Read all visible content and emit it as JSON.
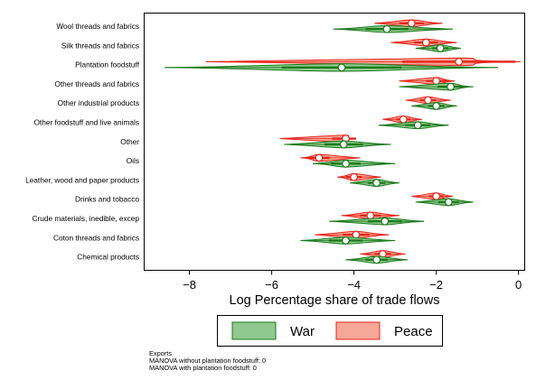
{
  "chart_data": {
    "type": "violin",
    "xlabel": "Log Percentage share of trade flows",
    "xlim": [
      -9.1,
      0.15
    ],
    "xticks": [
      -8,
      -6,
      -4,
      -2,
      0
    ],
    "categories": [
      "Wool threads and fabrics",
      "Silk threads and fabrics",
      "Plantation foodstuff",
      "Other threads and fabrics",
      "Other industrial products",
      "Other foodstuff and live animals",
      "Other",
      "Oils",
      "Leather, wood and paper products",
      "Drinks and tobacco",
      "Crude materials, inedible, excep",
      "Coton threads and fabrics",
      "Chemical products"
    ],
    "series": [
      {
        "name": "War",
        "color": "#1a7a1a",
        "fill": "#8fc98f",
        "medians": [
          -3.2,
          -1.9,
          -4.3,
          -1.65,
          -2.0,
          -2.45,
          -4.25,
          -4.2,
          -3.45,
          -1.7,
          -3.25,
          -4.2,
          -3.45
        ],
        "ranges": [
          [
            -4.5,
            -1.6
          ],
          [
            -2.5,
            -1.4
          ],
          [
            -8.6,
            -0.5
          ],
          [
            -2.9,
            -1.1
          ],
          [
            -2.6,
            -1.5
          ],
          [
            -3.4,
            -1.7
          ],
          [
            -5.7,
            -3.1
          ],
          [
            -5.0,
            -3.0
          ],
          [
            -4.1,
            -2.9
          ],
          [
            -2.5,
            -1.1
          ],
          [
            -4.6,
            -2.3
          ],
          [
            -5.3,
            -3.0
          ],
          [
            -4.2,
            -2.7
          ]
        ]
      },
      {
        "name": "Peace",
        "color": "#e8251a",
        "fill": "#f5a898",
        "medians": [
          -2.6,
          -2.25,
          -1.45,
          -2.0,
          -2.2,
          -2.8,
          -4.2,
          -4.85,
          -4.0,
          -2.0,
          -3.6,
          -3.95,
          -3.3
        ]
      }
    ]
  },
  "notes": [
    "Exports",
    "MANOVA without plantation foodstuff: 0",
    "MANOVA with plantation foodstuff: 0"
  ]
}
